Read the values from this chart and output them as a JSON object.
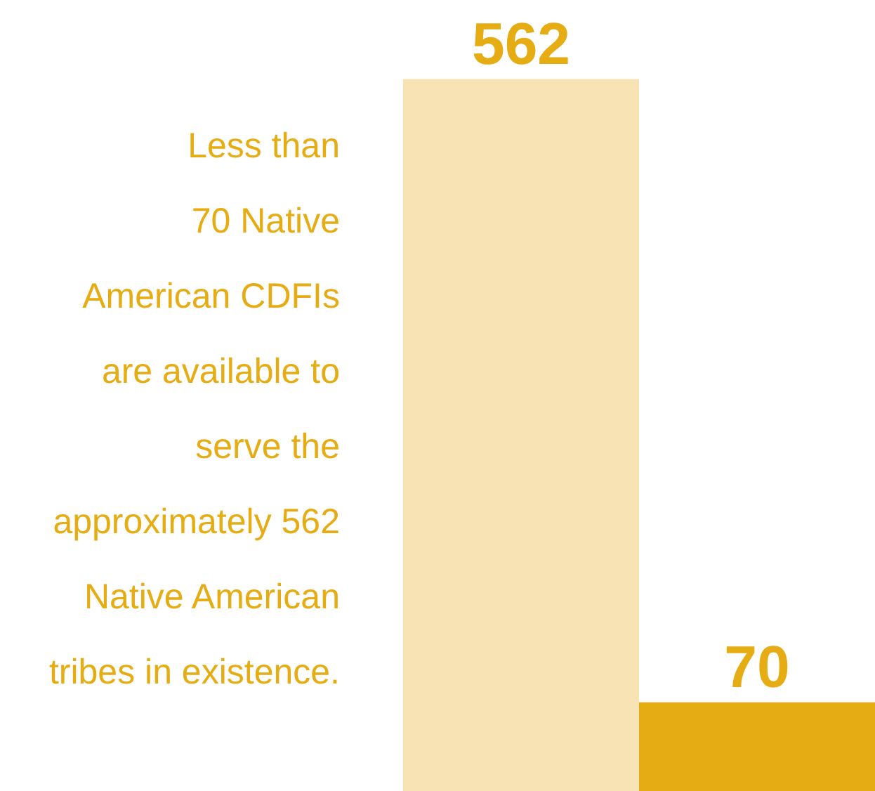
{
  "chart_data": {
    "type": "bar",
    "categories": [
      null,
      null
    ],
    "values": [
      562,
      70
    ],
    "colors": [
      "#f7e3b4",
      "#e6ac14"
    ],
    "data_labels": true,
    "annotations": [
      "Less than\n70 Native\nAmerican CDFIs\nare available to\nserve the\napproximately 562\nNative American\ntribes in existence."
    ]
  }
}
